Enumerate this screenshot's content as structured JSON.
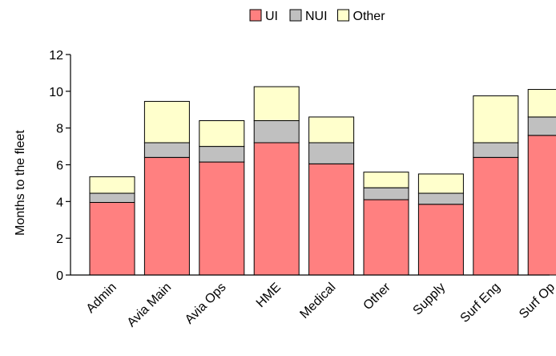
{
  "chart_data": {
    "type": "bar",
    "stacked": true,
    "title": "",
    "xlabel": "",
    "ylabel": "Months to the fleet",
    "ylim": [
      0,
      12
    ],
    "yticks": [
      0,
      2,
      4,
      6,
      8,
      10,
      12
    ],
    "grid": false,
    "legend_position": "top-center",
    "categories": [
      "Admin",
      "Avia Main",
      "Avia Ops",
      "HME",
      "Medical",
      "Other",
      "Supply",
      "Surf Eng",
      "Surf Op"
    ],
    "series": [
      {
        "name": "UI",
        "color": "#ff8080",
        "values": [
          3.95,
          6.4,
          6.15,
          7.2,
          6.05,
          4.1,
          3.85,
          6.4,
          7.6
        ]
      },
      {
        "name": "NUI",
        "color": "#c0c0c0",
        "values": [
          0.5,
          0.8,
          0.85,
          1.2,
          1.15,
          0.65,
          0.6,
          0.8,
          1.0
        ]
      },
      {
        "name": "Other",
        "color": "#ffffcc",
        "values": [
          0.9,
          2.25,
          1.4,
          1.85,
          1.4,
          0.85,
          1.05,
          2.55,
          1.5
        ]
      }
    ]
  }
}
